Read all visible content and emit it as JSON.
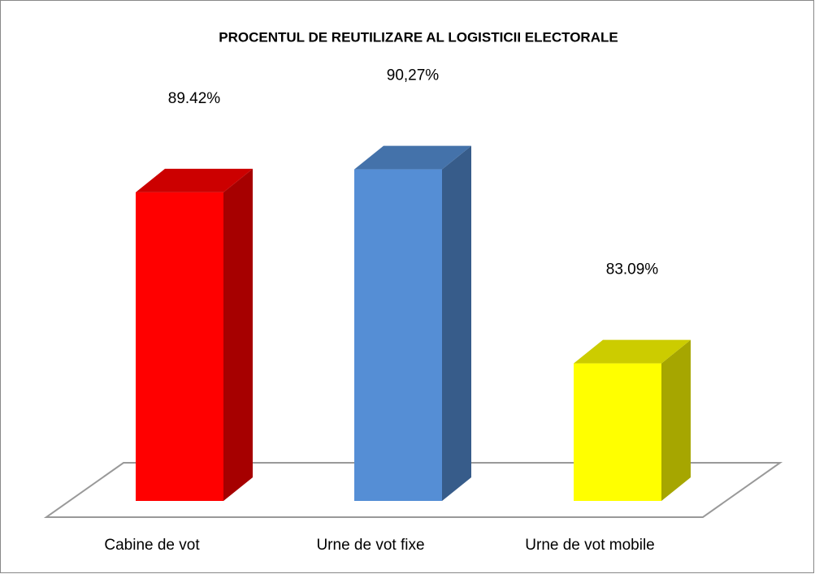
{
  "chart_data": {
    "type": "bar3d",
    "title": "PROCENTUL DE REUTILIZARE AL LOGISTICII ELECTORALE",
    "categories": [
      "Cabine de vot",
      "Urne de vot fixe",
      "Urne de vot mobile"
    ],
    "values": [
      89.42,
      90.27,
      83.09
    ],
    "value_labels": [
      "89.42%",
      "90,27%",
      "83.09%"
    ],
    "colors": [
      "#ff0000",
      "#558ed5",
      "#ffff00"
    ],
    "ylim": [
      78,
      92
    ]
  }
}
